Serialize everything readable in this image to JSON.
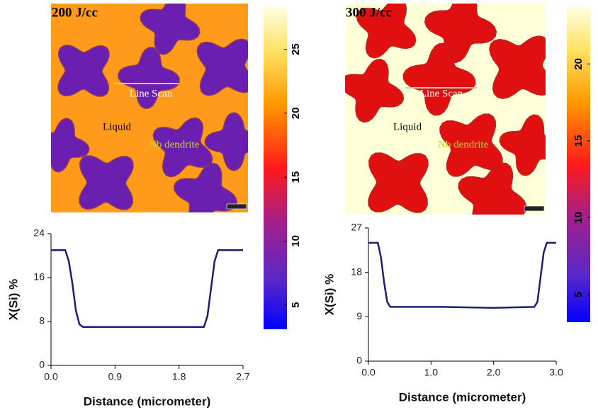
{
  "chart_data": [
    {
      "type": "line",
      "x_label": "Distance (micrometer)",
      "y_label": "X(Si) %",
      "color": "#1c1f78",
      "x": [
        0,
        0.2,
        0.25,
        0.3,
        0.35,
        0.4,
        0.45,
        1.0,
        2.15,
        2.2,
        2.25,
        2.3,
        2.35,
        2.7
      ],
      "values": [
        21,
        21,
        19,
        15,
        10,
        7.5,
        7,
        7,
        7,
        9,
        14,
        19,
        21,
        21
      ],
      "xlim": [
        0,
        2.7
      ],
      "ylim": [
        0,
        24
      ],
      "xticks": [
        {
          "value": 0,
          "label": "0.0"
        },
        0.9,
        1.8,
        2.7
      ],
      "yticks": [
        0,
        8,
        16,
        24
      ]
    },
    {
      "type": "line",
      "x_label": "Distance (micrometer)",
      "y_label": "X(Si) %",
      "color": "#1c1f78",
      "x": [
        0,
        0.15,
        0.2,
        0.25,
        0.3,
        0.35,
        1.2,
        2.0,
        2.65,
        2.7,
        2.75,
        2.8,
        2.85,
        3.0
      ],
      "values": [
        24,
        24,
        21,
        16,
        12,
        11,
        11,
        10.8,
        11,
        12,
        17,
        22,
        24,
        24
      ],
      "xlim": [
        0,
        3
      ],
      "ylim": [
        0,
        27
      ],
      "xticks": [
        {
          "value": 0,
          "label": "0.0"
        },
        {
          "value": 1,
          "label": "1.0"
        },
        {
          "value": 2,
          "label": "2.0"
        },
        {
          "value": 3,
          "label": "3.0"
        }
      ],
      "yticks": [
        0,
        9,
        18,
        27
      ]
    }
  ],
  "maps": [
    {
      "title": "200 J/cc",
      "line_scan": "Line Scan",
      "liquid": "Liquid",
      "dendrite": "Nb dendrite"
    },
    {
      "title": "300 J/cc",
      "line_scan": "Line Scan",
      "liquid": "Liquid",
      "dendrite": "Nb dendrite"
    }
  ],
  "colorbars": [
    {
      "lim": [
        3.1,
        28.3
      ],
      "ticks": [
        5,
        10,
        15,
        20,
        25
      ]
    },
    {
      "lim": [
        3.2,
        23.7
      ],
      "ticks": [
        5,
        10,
        15,
        20
      ]
    }
  ]
}
